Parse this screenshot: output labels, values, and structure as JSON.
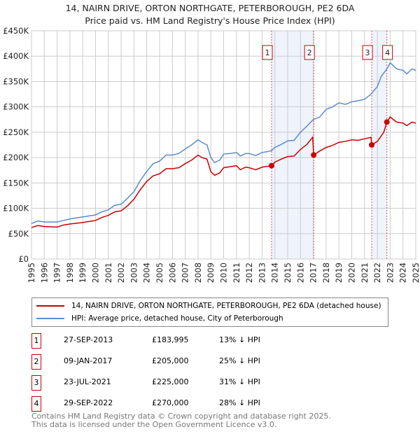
{
  "title": "14, NAIRN DRIVE, ORTON NORTHGATE, PETERBOROUGH, PE2 6DA",
  "subtitle": "Price paid vs. HM Land Registry's House Price Index (HPI)",
  "chart_data": {
    "type": "line",
    "title": "14, NAIRN DRIVE, ORTON NORTHGATE, PETERBOROUGH, PE2 6DA",
    "subtitle": "Price paid vs. HM Land Registry's House Price Index (HPI)",
    "xlim": [
      1995,
      2025
    ],
    "ylim": [
      0,
      450000
    ],
    "y_ticks": [
      0,
      50000,
      100000,
      150000,
      200000,
      250000,
      300000,
      350000,
      400000,
      450000
    ],
    "y_tick_labels": [
      "£0",
      "£50K",
      "£100K",
      "£150K",
      "£200K",
      "£250K",
      "£300K",
      "£350K",
      "£400K",
      "£450K"
    ],
    "x_tick_labels": [
      "1995",
      "1996",
      "1997",
      "1998",
      "1999",
      "2000",
      "2001",
      "2002",
      "2003",
      "2004",
      "2005",
      "2006",
      "2007",
      "2008",
      "2009",
      "2010",
      "2011",
      "2012",
      "2013",
      "2014",
      "2015",
      "2016",
      "2017",
      "2018",
      "2019",
      "2020",
      "2021",
      "2022",
      "2023",
      "2024",
      "2025"
    ],
    "grid": true,
    "legend_position": "below",
    "series": [
      {
        "name": "14, NAIRN DRIVE, ORTON NORTHGATE, PETERBOROUGH, PE2 6DA (detached house)",
        "color": "#cc0000",
        "x": [
          1995,
          1995.5,
          1996,
          1997,
          1997.5,
          1998,
          1999,
          2000,
          2000.5,
          2001,
          2001.5,
          2002,
          2002.5,
          2003,
          2003.5,
          2004,
          2004.5,
          2005,
          2005.5,
          2006,
          2006.5,
          2007,
          2007.5,
          2008,
          2008.3,
          2008.7,
          2009,
          2009.3,
          2009.7,
          2010,
          2010.5,
          2011,
          2011.3,
          2011.7,
          2012,
          2012.5,
          2013,
          2013.5,
          2013.74,
          2014,
          2014.5,
          2015,
          2015.5,
          2016,
          2016.5,
          2016.95,
          2017.03,
          2017.5,
          2018,
          2018.5,
          2019,
          2019.5,
          2020,
          2020.5,
          2021,
          2021.5,
          2021.56,
          2022,
          2022.5,
          2022.74,
          2023,
          2023.5,
          2024,
          2024.3,
          2024.7,
          2025
        ],
        "y": [
          62000,
          66000,
          64000,
          63000,
          67000,
          69000,
          72000,
          76000,
          82000,
          86000,
          93000,
          95000,
          105000,
          118000,
          137000,
          153000,
          164000,
          168000,
          178000,
          178000,
          180000,
          188000,
          195000,
          205000,
          200000,
          197000,
          172000,
          165000,
          170000,
          180000,
          182000,
          184000,
          176000,
          181000,
          180000,
          176000,
          181000,
          183000,
          183995,
          191000,
          197000,
          202000,
          203000,
          216000,
          226000,
          240000,
          205000,
          213000,
          220000,
          224000,
          230000,
          232000,
          235000,
          234000,
          237000,
          240000,
          225000,
          232000,
          250000,
          270000,
          280000,
          270000,
          268000,
          263000,
          270000,
          268000
        ]
      },
      {
        "name": "HPI: Average price, detached house, City of Peterborough",
        "color": "#5b8bd0",
        "x": [
          1995,
          1995.5,
          1996,
          1997,
          1997.5,
          1998,
          1999,
          2000,
          2000.5,
          2001,
          2001.5,
          2002,
          2002.5,
          2003,
          2003.5,
          2004,
          2004.5,
          2005,
          2005.5,
          2006,
          2006.5,
          2007,
          2007.5,
          2008,
          2008.3,
          2008.7,
          2009,
          2009.3,
          2009.7,
          2010,
          2010.5,
          2011,
          2011.3,
          2011.7,
          2012,
          2012.5,
          2013,
          2013.5,
          2013.75,
          2014,
          2014.5,
          2015,
          2015.5,
          2016,
          2016.5,
          2017,
          2017.5,
          2018,
          2018.5,
          2019,
          2019.5,
          2020,
          2020.5,
          2021,
          2021.5,
          2022,
          2022.3,
          2022.75,
          2023,
          2023.5,
          2024,
          2024.3,
          2024.7,
          2025
        ],
        "y": [
          70000,
          75000,
          73000,
          73000,
          76000,
          79000,
          83000,
          87000,
          93000,
          97000,
          106000,
          108000,
          120000,
          133000,
          155000,
          173000,
          188000,
          193000,
          205000,
          205000,
          208000,
          217000,
          225000,
          235000,
          230000,
          225000,
          200000,
          190000,
          195000,
          207000,
          208000,
          210000,
          203000,
          208000,
          208000,
          204000,
          210000,
          212000,
          214000,
          220000,
          226000,
          233000,
          234000,
          250000,
          262000,
          275000,
          280000,
          295000,
          300000,
          308000,
          305000,
          310000,
          312000,
          315000,
          325000,
          340000,
          360000,
          375000,
          387000,
          375000,
          372000,
          365000,
          375000,
          372000
        ]
      }
    ],
    "sales": [
      {
        "n": "1",
        "date": "27-SEP-2013",
        "x": 2013.74,
        "price": "£183,995",
        "value": 183995,
        "hpi": "13% ↓ HPI"
      },
      {
        "n": "2",
        "date": "09-JAN-2017",
        "x": 2017.03,
        "price": "£205,000",
        "value": 205000,
        "hpi": "25% ↓ HPI"
      },
      {
        "n": "3",
        "date": "23-JUL-2021",
        "x": 2021.56,
        "price": "£225,000",
        "value": 225000,
        "hpi": "31% ↓ HPI"
      },
      {
        "n": "4",
        "date": "29-SEP-2022",
        "x": 2022.74,
        "price": "£270,000",
        "value": 270000,
        "hpi": "28% ↓ HPI"
      }
    ],
    "shaded_ranges": [
      [
        2013.74,
        2017.03
      ],
      [
        2021.56,
        2022.74
      ]
    ]
  },
  "footer": {
    "line1": "Contains HM Land Registry data © Crown copyright and database right 2025.",
    "line2": "This data is licensed under the Open Government Licence v3.0."
  }
}
